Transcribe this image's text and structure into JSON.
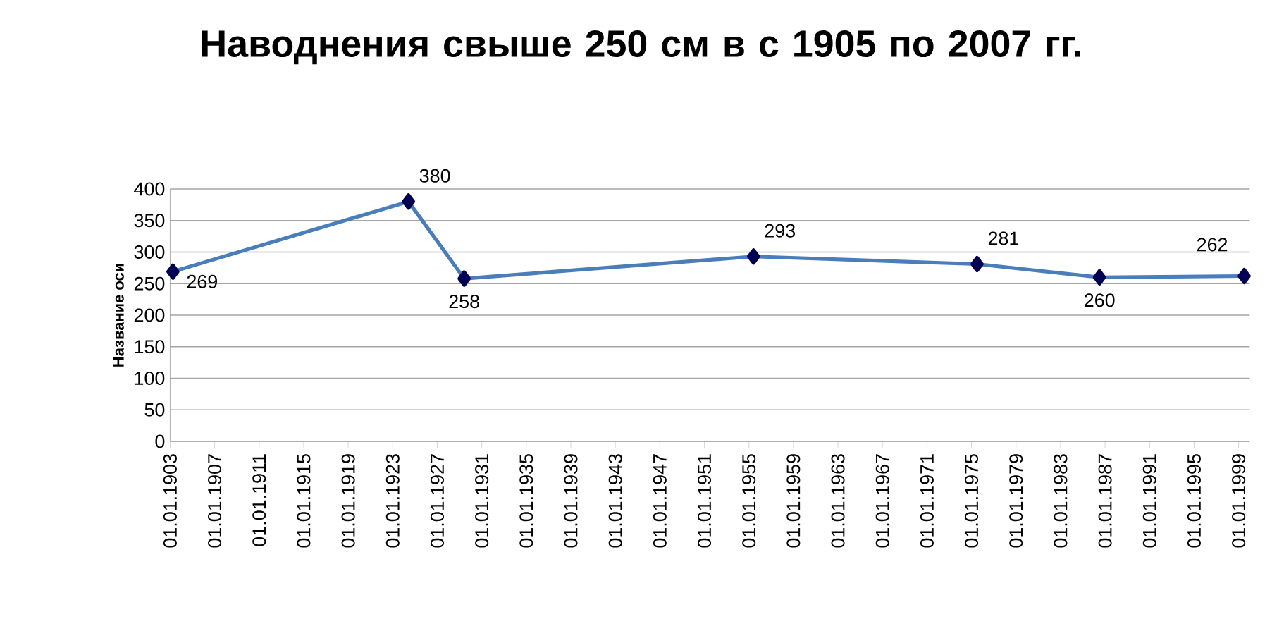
{
  "chart_data": {
    "type": "line",
    "title": "Наводнения свыше 250 см в с 1905 по 2007 гг.",
    "ylabel": "Название оси",
    "x": [
      "1903-04",
      "1924-06",
      "1929-06",
      "1955-06",
      "1975-07",
      "1986-07",
      "1999-07"
    ],
    "series": [
      {
        "color": "#4a7ebb",
        "values": [
          269,
          380,
          258,
          293,
          281,
          260,
          262
        ]
      }
    ],
    "xlim": [
      "1903-01-01",
      "2000-01-01"
    ],
    "xticks": [
      {
        "value": "1903-01-01",
        "label": "01.01.1903"
      },
      {
        "value": "1907-01-01",
        "label": "01.01.1907"
      },
      {
        "value": "1911-01-01",
        "label": "01.01.1911"
      },
      {
        "value": "1915-01-01",
        "label": "01.01.1915"
      },
      {
        "value": "1919-01-01",
        "label": "01.01.1919"
      },
      {
        "value": "1923-01-01",
        "label": "01.01.1923"
      },
      {
        "value": "1927-01-01",
        "label": "01.01.1927"
      },
      {
        "value": "1931-01-01",
        "label": "01.01.1931"
      },
      {
        "value": "1935-01-01",
        "label": "01.01.1935"
      },
      {
        "value": "1939-01-01",
        "label": "01.01.1939"
      },
      {
        "value": "1943-01-01",
        "label": "01.01.1943"
      },
      {
        "value": "1947-01-01",
        "label": "01.01.1947"
      },
      {
        "value": "1951-01-01",
        "label": "01.01.1951"
      },
      {
        "value": "1955-01-01",
        "label": "01.01.1955"
      },
      {
        "value": "1959-01-01",
        "label": "01.01.1959"
      },
      {
        "value": "1963-01-01",
        "label": "01.01.1963"
      },
      {
        "value": "1967-01-01",
        "label": "01.01.1967"
      },
      {
        "value": "1971-01-01",
        "label": "01.01.1971"
      },
      {
        "value": "1975-01-01",
        "label": "01.01.1975"
      },
      {
        "value": "1979-01-01",
        "label": "01.01.1979"
      },
      {
        "value": "1983-01-01",
        "label": "01.01.1983"
      },
      {
        "value": "1987-01-01",
        "label": "01.01.1987"
      },
      {
        "value": "1991-01-01",
        "label": "01.01.1991"
      },
      {
        "value": "1995-01-01",
        "label": "01.01.1995"
      },
      {
        "value": "1999-01-01",
        "label": "01.01.1999"
      }
    ],
    "ylim": [
      0,
      400
    ],
    "yticks": [
      0,
      50,
      100,
      150,
      200,
      250,
      300,
      350,
      400
    ],
    "grid": "y",
    "marker": "diamond",
    "line_style": "solid",
    "data_labels": true
  }
}
